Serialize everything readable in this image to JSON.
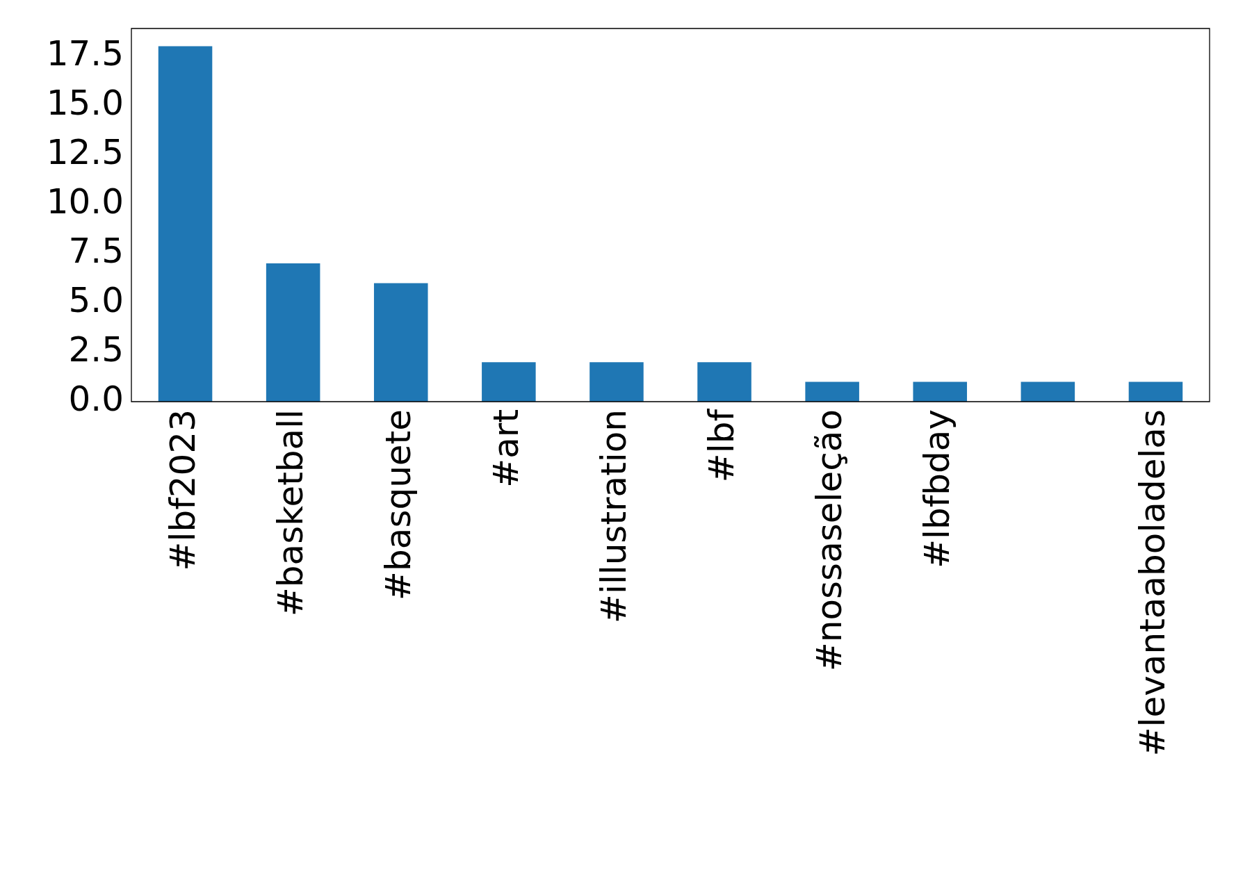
{
  "chart_data": {
    "type": "bar",
    "categories": [
      "#lbf2023",
      "#basketball",
      "#basquete",
      "#art",
      "#illustration",
      "#lbf",
      "#nossaseleção",
      "#lbfbday",
      null,
      "#levantaaboladelas"
    ],
    "values": [
      18,
      7,
      6,
      2,
      2,
      2,
      1,
      1,
      1,
      1
    ],
    "color": "#1f77b4",
    "ylim": [
      0,
      18.9
    ],
    "yticks": [
      {
        "value": 0,
        "label": "0.0"
      },
      {
        "value": 2.5,
        "label": "2.5"
      },
      {
        "value": 5,
        "label": "5.0"
      },
      {
        "value": 7.5,
        "label": "7.5"
      },
      {
        "value": 10,
        "label": "10.0"
      },
      {
        "value": 12.5,
        "label": "12.5"
      },
      {
        "value": 15,
        "label": "15.0"
      },
      {
        "value": 17.5,
        "label": "17.5"
      }
    ],
    "grid": false,
    "legend": false
  }
}
